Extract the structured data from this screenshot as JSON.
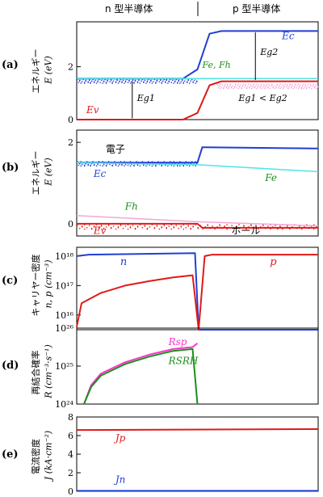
{
  "header": {
    "left": "n 型半導体",
    "right": "p 型半導体"
  },
  "panels": [
    {
      "letter": "(a)",
      "ylabel_jp": "エネルギー",
      "ylabel": "E (eV)"
    },
    {
      "letter": "(b)",
      "ylabel_jp": "エネルギー",
      "ylabel": "E (eV)"
    },
    {
      "letter": "(c)",
      "ylabel_jp": "キャリヤー密度",
      "ylabel": "n, p (cm⁻³)"
    },
    {
      "letter": "(d)",
      "ylabel_jp": "再結合確率",
      "ylabel": "R (cm⁻³·s⁻¹)"
    },
    {
      "letter": "(e)",
      "ylabel_jp": "電流密度",
      "ylabel": "J (kA·cm⁻²)"
    }
  ],
  "colors": {
    "blue": "#1f3fd6",
    "red": "#e01919",
    "cyan": "#4fe3e3",
    "green": "#1a8f1a",
    "magenta": "#ff33cc",
    "pink": "#f4a6d7"
  },
  "chart_data": [
    {
      "type": "line",
      "panel": "a",
      "ylim": [
        0,
        3.7
      ],
      "yticks": [
        0,
        2
      ],
      "series": [
        {
          "name": "Ec",
          "x": [
            0,
            0.44,
            0.5,
            0.55,
            0.6,
            1
          ],
          "y": [
            1.55,
            1.55,
            1.9,
            3.25,
            3.35,
            3.35
          ]
        },
        {
          "name": "Fe, Fh",
          "x": [
            0,
            1
          ],
          "y": [
            1.55,
            1.55
          ]
        },
        {
          "name": "Ev",
          "x": [
            0,
            0.44,
            0.5,
            0.55,
            0.6,
            1
          ],
          "y": [
            0,
            0,
            0.25,
            1.3,
            1.45,
            1.45
          ]
        }
      ],
      "annotations": [
        "Ec",
        "Fe, Fh",
        "Eg2",
        "Eg1",
        "Ev",
        "Eg1 < Eg2"
      ]
    },
    {
      "type": "line",
      "panel": "b",
      "ylim": [
        -0.3,
        2.3
      ],
      "yticks": [
        0,
        2
      ],
      "series": [
        {
          "name": "Ec",
          "x": [
            0,
            0.5,
            0.52,
            1
          ],
          "y": [
            1.5,
            1.5,
            1.88,
            1.85
          ]
        },
        {
          "name": "Fe",
          "x": [
            0,
            0.5,
            1
          ],
          "y": [
            1.5,
            1.45,
            1.28
          ]
        },
        {
          "name": "Fh",
          "x": [
            0,
            0.5,
            1
          ],
          "y": [
            0.2,
            0.05,
            -0.05
          ]
        },
        {
          "name": "Ev",
          "x": [
            0,
            0.5,
            0.52,
            1
          ],
          "y": [
            0,
            0,
            -0.1,
            -0.1
          ]
        }
      ],
      "annotations": [
        "電子",
        "Ec",
        "Fe",
        "Fh",
        "Ev",
        "ホール"
      ]
    },
    {
      "type": "line",
      "panel": "c",
      "yscale": "log",
      "ylim": [
        15.5,
        18.3
      ],
      "ytick_labels": [
        "10¹⁸",
        "10¹⁷",
        "10¹⁶"
      ],
      "series": [
        {
          "name": "n",
          "x": [
            0,
            0.05,
            0.49,
            0.505,
            1
          ],
          "y": [
            18.0,
            18.05,
            18.1,
            15.5,
            15.5
          ]
        },
        {
          "name": "p",
          "x": [
            0,
            0.02,
            0.1,
            0.2,
            0.3,
            0.4,
            0.48,
            0.505,
            0.53,
            0.56,
            1
          ],
          "y": [
            15.6,
            16.4,
            16.75,
            17.0,
            17.15,
            17.28,
            17.35,
            15.5,
            18.0,
            18.05,
            18.05
          ]
        }
      ],
      "labels": [
        "n",
        "p"
      ]
    },
    {
      "type": "line",
      "panel": "d",
      "yscale": "log",
      "ylim": [
        24,
        26
      ],
      "ytick_labels": [
        "10²⁶",
        "10²⁵",
        "10²⁴"
      ],
      "series": [
        {
          "name": "Rsp",
          "x": [
            0.03,
            0.06,
            0.1,
            0.2,
            0.3,
            0.4,
            0.48,
            0.5
          ],
          "y": [
            24.0,
            24.5,
            24.8,
            25.1,
            25.3,
            25.45,
            25.5,
            25.6
          ]
        },
        {
          "name": "RSRH",
          "x": [
            0.03,
            0.06,
            0.1,
            0.2,
            0.3,
            0.4,
            0.48,
            0.5
          ],
          "y": [
            24.0,
            24.45,
            24.75,
            25.05,
            25.25,
            25.4,
            25.45,
            24.0
          ]
        }
      ],
      "labels": [
        "Rsp",
        "RSRH"
      ]
    },
    {
      "type": "line",
      "panel": "e",
      "ylim": [
        0,
        8
      ],
      "yticks": [
        0,
        2,
        4,
        6,
        8
      ],
      "series": [
        {
          "name": "Jp",
          "x": [
            0,
            1
          ],
          "y": [
            6.6,
            6.7
          ]
        },
        {
          "name": "Jn",
          "x": [
            0,
            1
          ],
          "y": [
            0.05,
            0.05
          ]
        }
      ],
      "labels": [
        "Jp",
        "Jn"
      ]
    }
  ]
}
